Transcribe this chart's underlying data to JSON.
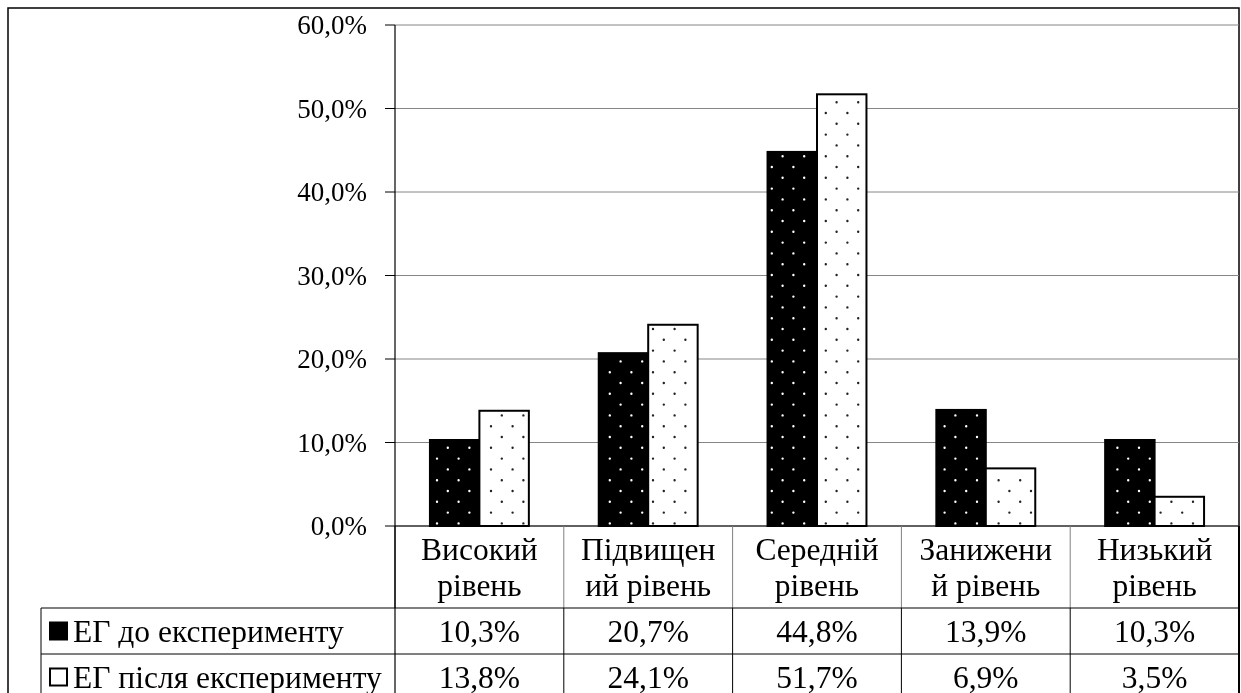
{
  "chart_data": {
    "type": "bar",
    "categories": [
      "Високий рівень",
      "Підвищений рівень",
      "Середній рівень",
      "Занижений рівень",
      "Низький рівень"
    ],
    "series": [
      {
        "name": "ЕГ до експерименту",
        "color": "#000000",
        "values": [
          10.3,
          20.7,
          44.8,
          13.9,
          10.3
        ],
        "value_labels": [
          "10,3%",
          "20,7%",
          "44,8%",
          "13,9%",
          "10,3%"
        ]
      },
      {
        "name": "ЕГ після експерименту",
        "color": "#ffffff",
        "values": [
          13.8,
          24.1,
          51.7,
          6.9,
          3.5
        ],
        "value_labels": [
          "13,8%",
          "24,1%",
          "51,7%",
          "6,9%",
          "3,5%"
        ]
      }
    ],
    "ylim": [
      0,
      60
    ],
    "yticks": [
      {
        "value": 0,
        "label": "0,0%"
      },
      {
        "value": 10,
        "label": "10,0%"
      },
      {
        "value": 20,
        "label": "20,0%"
      },
      {
        "value": 30,
        "label": "30,0%"
      },
      {
        "value": 40,
        "label": "40,0%"
      },
      {
        "value": 50,
        "label": "50,0%"
      },
      {
        "value": 60,
        "label": "60,0%"
      }
    ],
    "grid": "y",
    "legend": "bottom"
  }
}
